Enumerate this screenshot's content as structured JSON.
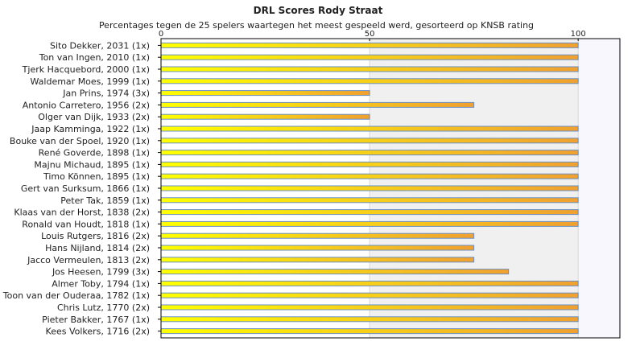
{
  "chart_data": {
    "type": "bar",
    "orientation": "horizontal",
    "title": "DRL Scores Rody Straat",
    "subtitle": "Percentages tegen de 25 spelers waartegen het meest gespeeld werd, gesorteerd op KNSB rating",
    "xlim": [
      0,
      110
    ],
    "xticks": [
      0,
      50,
      100
    ],
    "grid": "banded vertical",
    "categories": [
      "Sito Dekker, 2031 (1x)",
      "Ton van Ingen, 2010 (1x)",
      "Tjerk Hacquebord, 2000 (1x)",
      "Waldemar Moes, 1999 (1x)",
      "Jan Prins, 1974 (3x)",
      "Antonio Carretero, 1956 (2x)",
      "Olger van Dijk, 1933 (2x)",
      "Jaap Kamminga, 1922 (1x)",
      "Bouke van der Spoel, 1920 (1x)",
      "René Goverde, 1898 (1x)",
      "Majnu Michaud, 1895 (1x)",
      "Timo Können, 1895 (1x)",
      "Gert van Surksum, 1866 (1x)",
      "Peter Tak, 1859 (1x)",
      "Klaas van der Horst, 1838 (2x)",
      "Ronald van Houdt, 1818 (1x)",
      "Louis Rutgers, 1816 (2x)",
      "Hans Nijland, 1814 (2x)",
      "Jacco Vermeulen, 1813 (2x)",
      "Jos Heesen, 1799 (3x)",
      "Almer Toby, 1794 (1x)",
      "Toon van der Ouderaa, 1782 (1x)",
      "Chris Lutz, 1770 (2x)",
      "Pieter Bakker, 1767 (1x)",
      "Kees Volkers, 1716 (2x)"
    ],
    "values": [
      100,
      100,
      100,
      100,
      50,
      75,
      50,
      100,
      100,
      100,
      100,
      100,
      100,
      100,
      100,
      100,
      75,
      75,
      75,
      83.3,
      100,
      100,
      100,
      100,
      100
    ],
    "colors": {
      "bar_left": "#ffff00",
      "bar_right": "#f0a030",
      "bar_border": "#6a8fc0",
      "band": "#f0f0f0",
      "band_alt": "#ffffff",
      "plot_right": "#f7f7fd"
    }
  }
}
